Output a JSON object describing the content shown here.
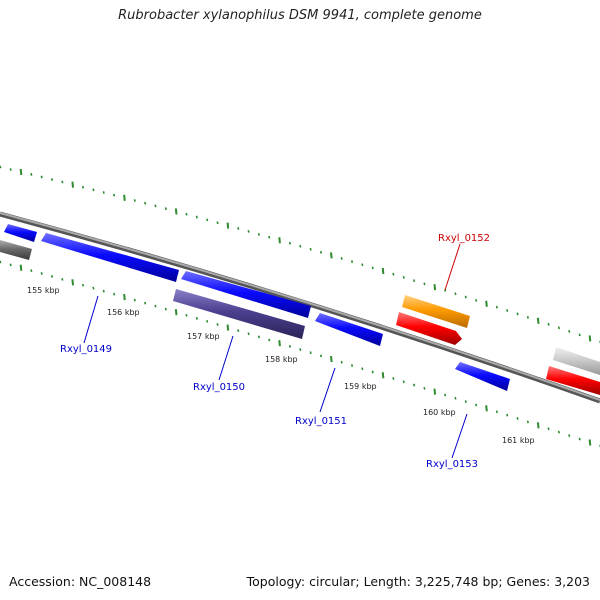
{
  "title": "Rubrobacter xylanophilus DSM 9941, complete genome",
  "footer": {
    "accession": "Accession: NC_008148",
    "summary": "Topology: circular; Length: 3,225,748 bp; Genes: 3,203"
  },
  "colors": {
    "forward_gene": "#0000ff",
    "reverse_gene": "#ff0000",
    "highlight_gene": "#ff9900",
    "pseudo_gene": "#4b3f8f",
    "other_gene": "#777777",
    "tick": "#2e8b2e",
    "backbone": "#888888"
  },
  "tick_labels": [
    "155 kbp",
    "156 kbp",
    "157 kbp",
    "158 kbp",
    "159 kbp",
    "160 kbp",
    "161 kbp"
  ],
  "gene_labels": {
    "g0149": "Rxyl_0149",
    "g0150": "Rxyl_0150",
    "g0151": "Rxyl_0151",
    "g0152": "Rxyl_0152",
    "g0153": "Rxyl_0153"
  }
}
